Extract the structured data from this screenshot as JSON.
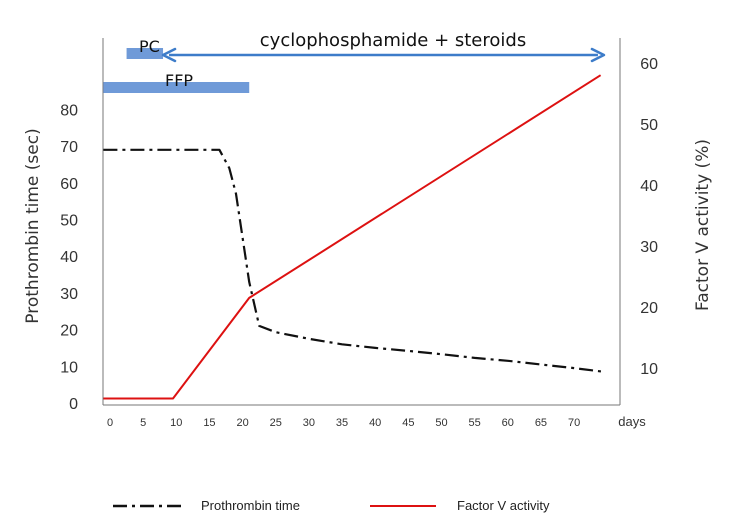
{
  "chart_data": {
    "type": "line",
    "x_unit_label": "days",
    "x_ticks": [
      0,
      5,
      10,
      15,
      20,
      25,
      30,
      35,
      40,
      45,
      50,
      55,
      60,
      65,
      70
    ],
    "xlim": [
      -2,
      75
    ],
    "left_axis": {
      "label": "Prothrombin time (sec)",
      "ticks": [
        0,
        10,
        20,
        30,
        40,
        50,
        60,
        70,
        80
      ],
      "ylim": [
        0,
        100
      ]
    },
    "right_axis": {
      "label": "Factor V activity (%)",
      "ticks": [
        10,
        20,
        30,
        40,
        50,
        60
      ],
      "ylim": [
        0,
        66
      ]
    },
    "series": [
      {
        "name": "Prothrombin time",
        "axis": "left",
        "color": "#111111",
        "style": "dash-dot",
        "points": [
          [
            -1,
            69
          ],
          [
            16.5,
            69
          ],
          [
            18,
            64
          ],
          [
            19,
            57
          ],
          [
            20,
            45
          ],
          [
            21,
            33
          ],
          [
            22.5,
            21
          ],
          [
            25,
            19.3
          ],
          [
            30,
            17.5
          ],
          [
            35,
            16
          ],
          [
            40,
            15
          ],
          [
            45,
            14.2
          ],
          [
            50,
            13.3
          ],
          [
            55,
            12.3
          ],
          [
            60,
            11.5
          ],
          [
            65,
            10.5
          ],
          [
            70,
            9.5
          ],
          [
            74.5,
            8.5
          ]
        ]
      },
      {
        "name": "Factor V activity",
        "axis": "right",
        "color": "#dd1111",
        "style": "solid",
        "points": [
          [
            -1,
            5
          ],
          [
            9.5,
            5
          ],
          [
            21,
            21.5
          ],
          [
            74,
            58
          ]
        ]
      }
    ],
    "annotations": {
      "treatment": {
        "label": "cyclophosphamide + steroids",
        "x_start": 8,
        "x_end": 74.5,
        "color": "#3d7cc9"
      },
      "bars": [
        {
          "label": "PC",
          "x_start": 2.5,
          "x_end": 8,
          "color": "#6f9ad8"
        },
        {
          "label": "FFP",
          "x_start": -1,
          "x_end": 21,
          "color": "#6f9ad8"
        }
      ]
    },
    "grid": false,
    "legend_placement": "bottom"
  }
}
